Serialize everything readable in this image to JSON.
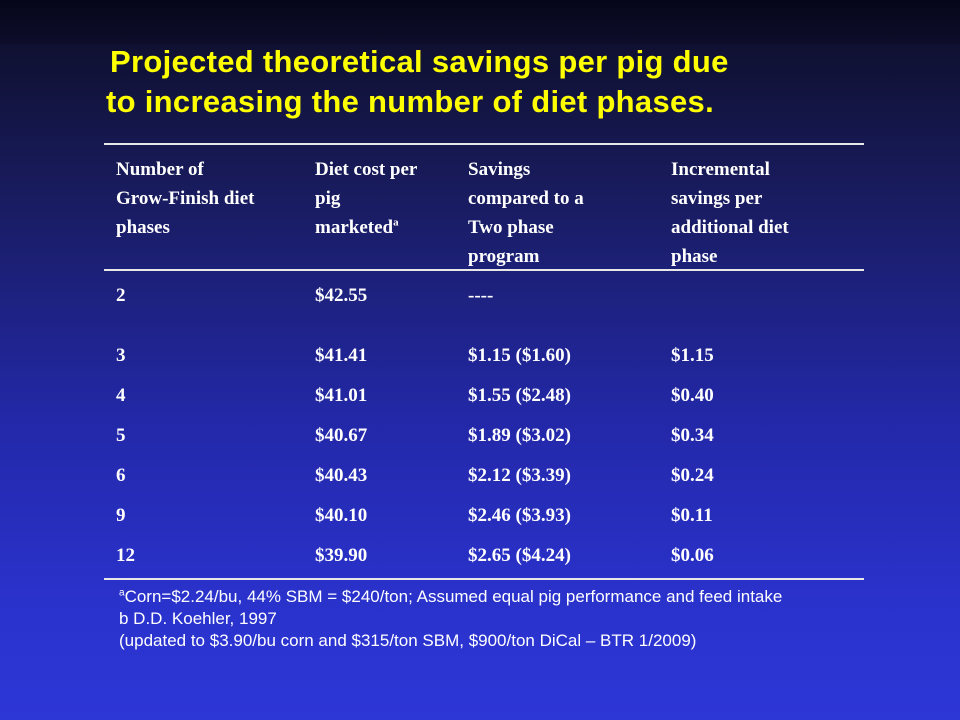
{
  "title": {
    "line1": "Projected theoretical savings per pig due",
    "line2": "to increasing the number of diet phases."
  },
  "table": {
    "headers": {
      "col1": [
        "Number of",
        "Grow-Finish diet",
        "phases"
      ],
      "col2": [
        "Diet cost per",
        "pig"
      ],
      "col2_last": "marketed",
      "col2_sup": "a",
      "col3": [
        "Savings",
        "compared to a",
        "Two phase",
        "program"
      ],
      "col4": [
        "Incremental",
        "savings per",
        "additional diet",
        "phase"
      ]
    },
    "rows": [
      {
        "phases": "2",
        "cost": "$42.55",
        "savings": "----",
        "incremental": ""
      },
      {
        "phases": "3",
        "cost": "$41.41",
        "savings": "$1.15 ($1.60)",
        "incremental": "$1.15"
      },
      {
        "phases": "4",
        "cost": "$41.01",
        "savings": "$1.55 ($2.48)",
        "incremental": "$0.40"
      },
      {
        "phases": "5",
        "cost": "$40.67",
        "savings": "$1.89 ($3.02)",
        "incremental": "$0.34"
      },
      {
        "phases": "6",
        "cost": "$40.43",
        "savings": "$2.12 ($3.39)",
        "incremental": "$0.24"
      },
      {
        "phases": "9",
        "cost": "$40.10",
        "savings": "$2.46 ($3.93)",
        "incremental": "$0.11"
      },
      {
        "phases": "12",
        "cost": "$39.90",
        "savings": "$2.65 ($4.24)",
        "incremental": "$0.06"
      }
    ]
  },
  "footnotes": {
    "line1_sup": "a",
    "line1": "Corn=$2.24/bu, 44% SBM = $240/ton;  Assumed equal pig performance and feed intake",
    "line2": "b D.D. Koehler, 1997",
    "line3": "(updated to $3.90/bu corn and $315/ton SBM, $900/ton DiCal – BTR 1/2009)"
  },
  "colors": {
    "title": "#ffff00",
    "text": "#ffffff",
    "background_top": "#0a0a24",
    "background_bottom": "#2d37d6"
  }
}
